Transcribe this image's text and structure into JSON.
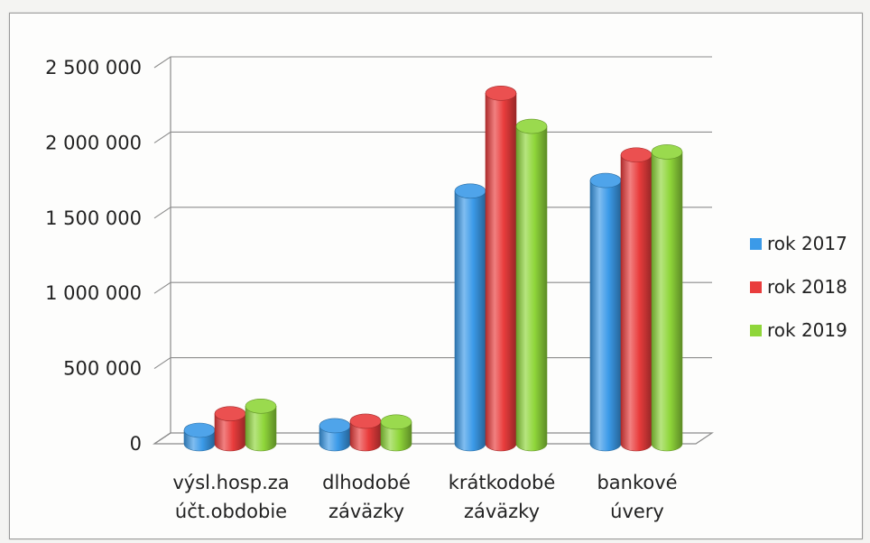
{
  "chart_data": {
    "type": "bar",
    "categories": [
      [
        "výsl.hosp.za",
        "účt.obdobie"
      ],
      [
        "dlhodobé",
        "záväzky"
      ],
      [
        "krátkodobé",
        "záväzky"
      ],
      [
        "bankové",
        "úvery"
      ]
    ],
    "series": [
      {
        "name": "rok 2017",
        "color": "#3b9ae8",
        "values": [
          90000,
          120000,
          1680000,
          1750000
        ]
      },
      {
        "name": "rok 2018",
        "color": "#e93c3c",
        "values": [
          200000,
          150000,
          2330000,
          1920000
        ]
      },
      {
        "name": "rok 2019",
        "color": "#8fd63a",
        "values": [
          250000,
          145000,
          2110000,
          1940000
        ]
      }
    ],
    "ylim": [
      0,
      2500000
    ],
    "yticks": [
      0,
      500000,
      1000000,
      1500000,
      2000000,
      2500000
    ],
    "ytick_labels": [
      "0",
      "500 000",
      "1 000 000",
      "1 500 000",
      "2 000 000",
      "2 500 000"
    ],
    "grid": true,
    "legend": "right",
    "style": "3d-cylinder"
  }
}
